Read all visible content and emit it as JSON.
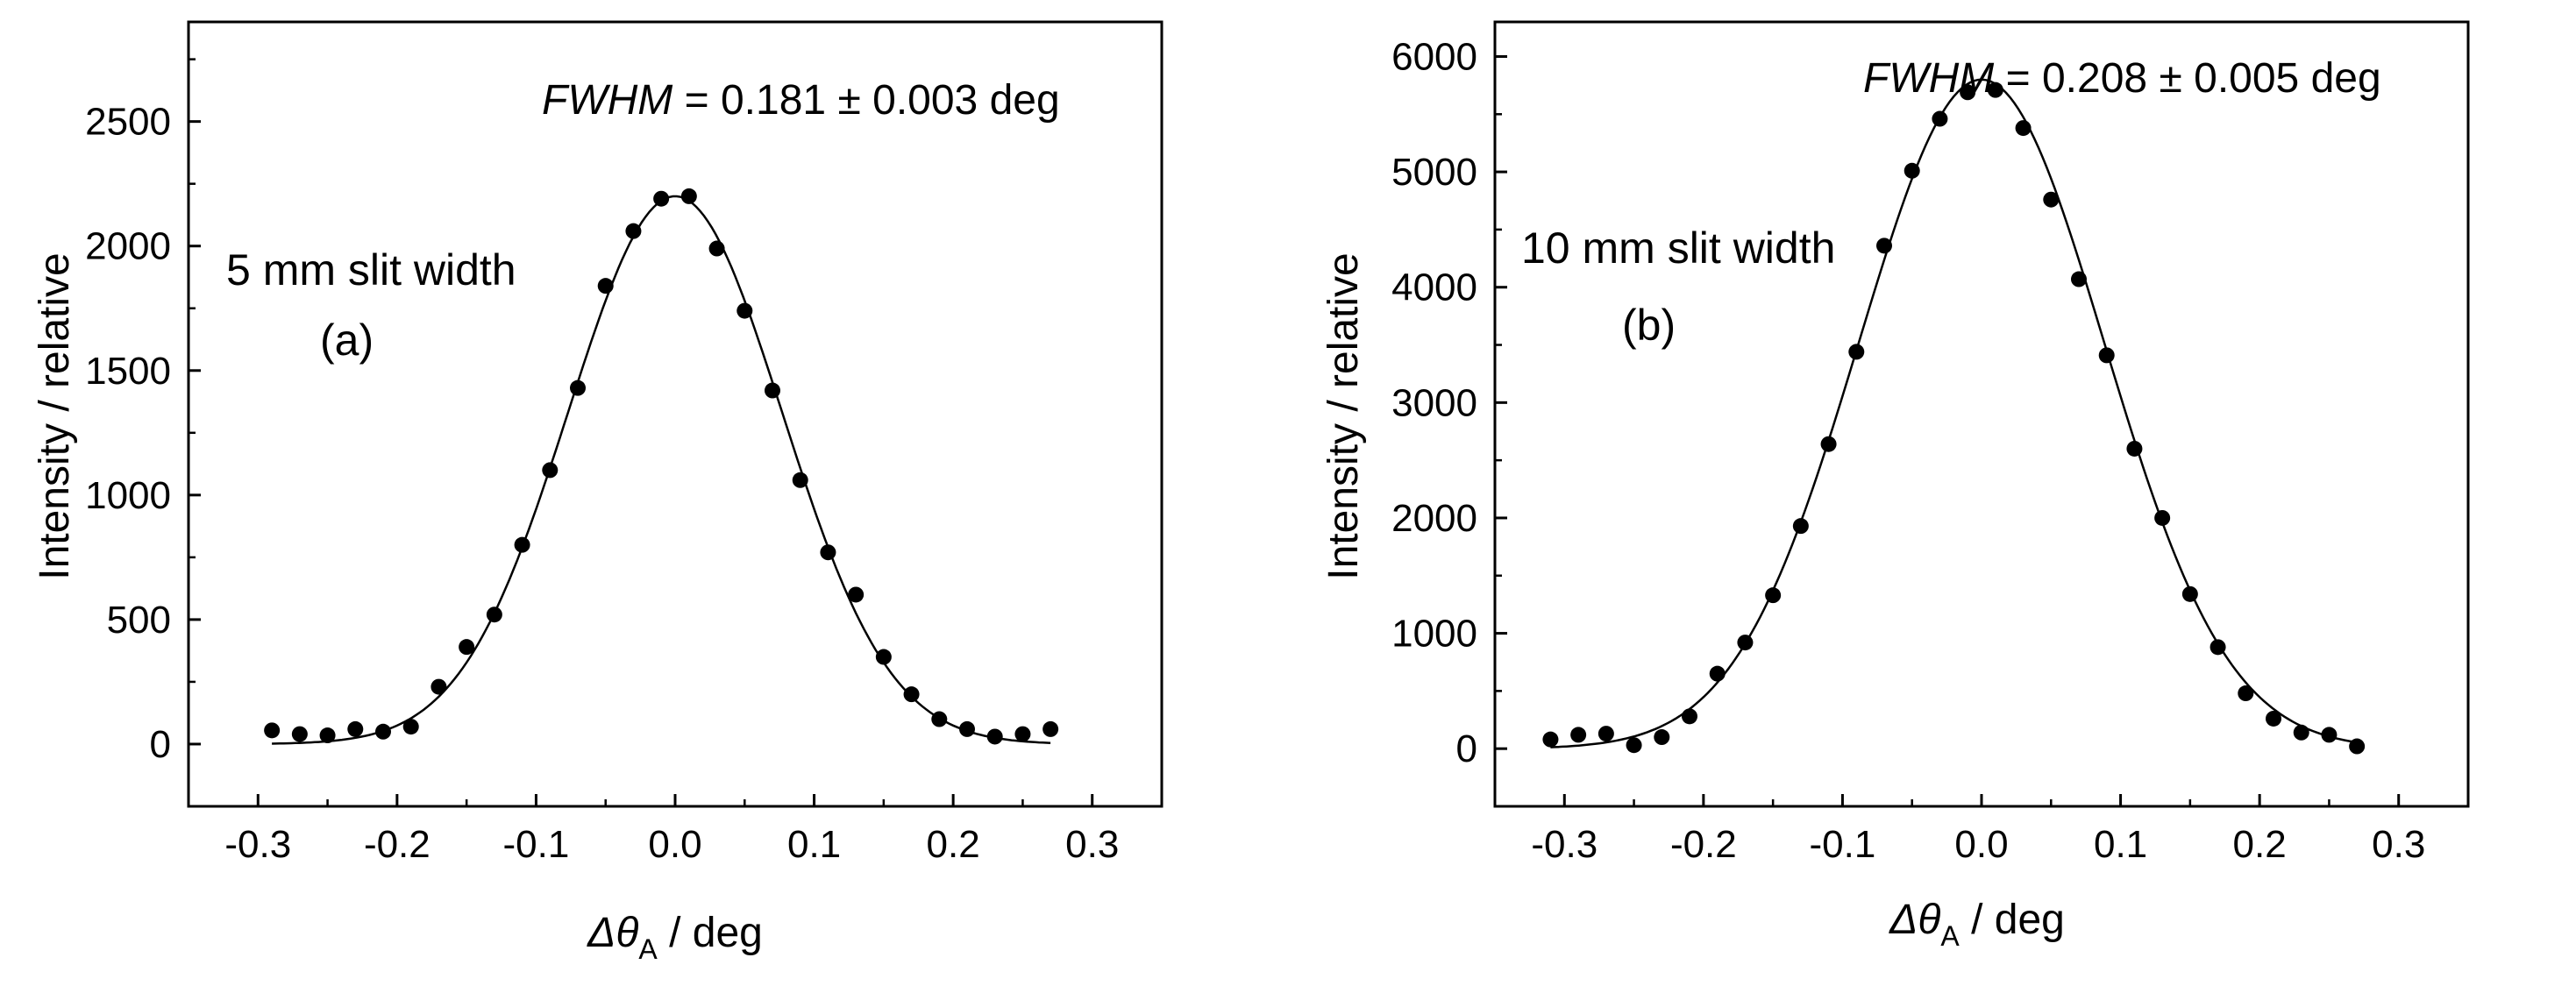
{
  "chart_data": [
    {
      "type": "scatter",
      "panel": "(a)",
      "annotation": "5 mm slit width",
      "fwhm_label": "FWHM",
      "fwhm_value": " = 0.181 ± 0.003 deg",
      "xlabel_symbol": "Δθ",
      "xlabel_sub": "A",
      "xlabel_rest": " / deg",
      "ylabel": "Intensity / relative",
      "xlim": [
        -0.35,
        0.35
      ],
      "ylim": [
        -250,
        2900
      ],
      "xticks": [
        -0.3,
        -0.2,
        -0.1,
        0.0,
        0.1,
        0.2,
        0.3
      ],
      "xtick_labels": [
        "-0.3",
        "-0.2",
        "-0.1",
        "0.0",
        "0.1",
        "0.2",
        "0.3"
      ],
      "yticks": [
        0,
        500,
        1000,
        1500,
        2000,
        2500
      ],
      "ytick_labels": [
        "0",
        "500",
        "1000",
        "1500",
        "2000",
        "2500"
      ],
      "fit": {
        "amplitude": 2200,
        "center": 0.0,
        "fwhm": 0.181,
        "baseline": 0
      },
      "x": [
        -0.29,
        -0.27,
        -0.25,
        -0.23,
        -0.21,
        -0.19,
        -0.17,
        -0.15,
        -0.13,
        -0.11,
        -0.09,
        -0.07,
        -0.05,
        -0.03,
        -0.01,
        0.01,
        0.03,
        0.05,
        0.07,
        0.09,
        0.11,
        0.13,
        0.15,
        0.17,
        0.19,
        0.21,
        0.23,
        0.25,
        0.27
      ],
      "y": [
        55,
        40,
        35,
        60,
        50,
        70,
        230,
        390,
        520,
        800,
        1100,
        1430,
        1840,
        2060,
        2190,
        2200,
        1990,
        1740,
        1420,
        1060,
        770,
        600,
        350,
        200,
        100,
        60,
        30,
        40,
        60
      ]
    },
    {
      "type": "scatter",
      "panel": "(b)",
      "annotation": "10 mm slit width",
      "fwhm_label": "FWHM",
      "fwhm_value": " =  0.208 ± 0.005 deg",
      "xlabel_symbol": "Δθ",
      "xlabel_sub": "A",
      "xlabel_rest": " / deg",
      "ylabel": "Intensity / relative",
      "xlim": [
        -0.35,
        0.35
      ],
      "ylim": [
        -500,
        6300
      ],
      "xticks": [
        -0.3,
        -0.2,
        -0.1,
        0.0,
        0.1,
        0.2,
        0.3
      ],
      "xtick_labels": [
        "-0.3",
        "-0.2",
        "-0.1",
        "0.0",
        "0.1",
        "0.2",
        "0.3"
      ],
      "yticks": [
        0,
        1000,
        2000,
        3000,
        4000,
        5000,
        6000
      ],
      "ytick_labels": [
        "0",
        "1000",
        "2000",
        "3000",
        "4000",
        "5000",
        "6000"
      ],
      "fit": {
        "amplitude": 5800,
        "center": 0.0,
        "fwhm": 0.208,
        "baseline": 0
      },
      "x": [
        -0.31,
        -0.29,
        -0.27,
        -0.25,
        -0.23,
        -0.21,
        -0.19,
        -0.17,
        -0.15,
        -0.13,
        -0.11,
        -0.09,
        -0.07,
        -0.05,
        -0.03,
        -0.01,
        0.01,
        0.03,
        0.05,
        0.07,
        0.09,
        0.11,
        0.13,
        0.15,
        0.17,
        0.19,
        0.21,
        0.23,
        0.25,
        0.27
      ],
      "y": [
        80,
        120,
        130,
        30,
        100,
        280,
        650,
        920,
        1330,
        1930,
        2640,
        3440,
        4360,
        5010,
        5460,
        5690,
        5710,
        5380,
        4760,
        4070,
        3410,
        2600,
        2000,
        1340,
        880,
        480,
        260,
        140,
        120,
        20
      ]
    }
  ]
}
